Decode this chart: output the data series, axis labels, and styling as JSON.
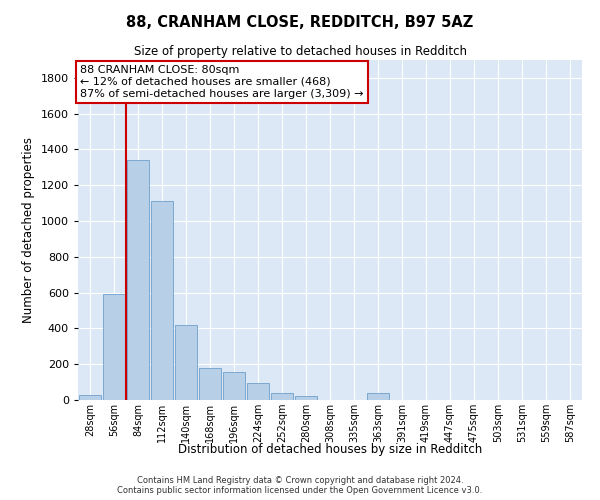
{
  "title1": "88, CRANHAM CLOSE, REDDITCH, B97 5AZ",
  "title2": "Size of property relative to detached houses in Redditch",
  "xlabel": "Distribution of detached houses by size in Redditch",
  "ylabel": "Number of detached properties",
  "footnote": "Contains HM Land Registry data © Crown copyright and database right 2024.\nContains public sector information licensed under the Open Government Licence v3.0.",
  "bar_color": "#b8cfe8",
  "bar_edge_color": "#6fa0cc",
  "categories": [
    "28sqm",
    "56sqm",
    "84sqm",
    "112sqm",
    "140sqm",
    "168sqm",
    "196sqm",
    "224sqm",
    "252sqm",
    "280sqm",
    "308sqm",
    "335sqm",
    "363sqm",
    "391sqm",
    "419sqm",
    "447sqm",
    "475sqm",
    "503sqm",
    "531sqm",
    "559sqm",
    "587sqm"
  ],
  "values": [
    30,
    590,
    1340,
    1110,
    420,
    180,
    155,
    95,
    40,
    20,
    0,
    0,
    40,
    0,
    0,
    0,
    0,
    0,
    0,
    0,
    0
  ],
  "ylim": [
    0,
    1900
  ],
  "yticks": [
    0,
    200,
    400,
    600,
    800,
    1000,
    1200,
    1400,
    1600,
    1800
  ],
  "red_line_bin": 1,
  "annotation_text": "88 CRANHAM CLOSE: 80sqm\n← 12% of detached houses are smaller (468)\n87% of semi-detached houses are larger (3,309) →",
  "annotation_box_color": "#ffffff",
  "annotation_box_edge": "#cc0000",
  "red_line_color": "#cc0000",
  "background_color": "#dce8f5",
  "grid_color": "#ffffff"
}
